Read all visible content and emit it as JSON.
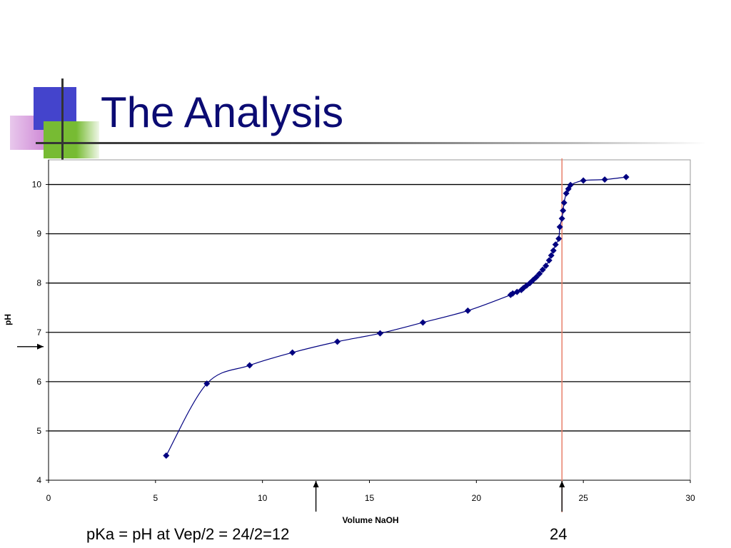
{
  "slide": {
    "title": "The Analysis",
    "note_left": "pKa = pH at Vep/2 = 24/2=12",
    "note_right": "24"
  },
  "colors": {
    "title": "#0b0b73",
    "series": "#000080",
    "endpoint_line": "#e8806a"
  },
  "chart_data": {
    "type": "scatter",
    "xlabel": "Volume  NaOH",
    "ylabel": "pH",
    "xlim": [
      0,
      30
    ],
    "ylim": [
      4,
      10.5
    ],
    "xticks": [
      0,
      5,
      10,
      15,
      20,
      25,
      30
    ],
    "yticks": [
      4,
      5,
      6,
      7,
      8,
      9,
      10
    ],
    "grid": "horizontal",
    "smooth_line": true,
    "series": [
      {
        "points": [
          [
            5.5,
            4.5
          ],
          [
            7.4,
            5.96
          ],
          [
            9.4,
            6.33
          ],
          [
            11.4,
            6.59
          ],
          [
            13.5,
            6.81
          ],
          [
            15.5,
            6.98
          ],
          [
            17.5,
            7.2
          ],
          [
            19.6,
            7.44
          ],
          [
            21.6,
            7.76
          ],
          [
            21.7,
            7.79
          ],
          [
            21.9,
            7.82
          ],
          [
            22.1,
            7.86
          ],
          [
            22.2,
            7.9
          ],
          [
            22.35,
            7.95
          ],
          [
            22.5,
            8.0
          ],
          [
            22.65,
            8.06
          ],
          [
            22.8,
            8.12
          ],
          [
            22.95,
            8.19
          ],
          [
            23.1,
            8.27
          ],
          [
            23.25,
            8.35
          ],
          [
            23.4,
            8.46
          ],
          [
            23.5,
            8.56
          ],
          [
            23.6,
            8.66
          ],
          [
            23.7,
            8.78
          ],
          [
            23.85,
            8.9
          ],
          [
            23.9,
            9.14
          ],
          [
            24.0,
            9.31
          ],
          [
            24.05,
            9.47
          ],
          [
            24.1,
            9.63
          ],
          [
            24.2,
            9.82
          ],
          [
            24.3,
            9.91
          ],
          [
            24.4,
            9.99
          ],
          [
            25.0,
            10.08
          ],
          [
            26.0,
            10.1
          ],
          [
            27.0,
            10.15
          ]
        ]
      }
    ],
    "annotations": {
      "equivalence_line_x": 24,
      "arrow_ph": 7.0,
      "arrow_x_half": 12.5,
      "arrow_x_end": 24
    }
  }
}
